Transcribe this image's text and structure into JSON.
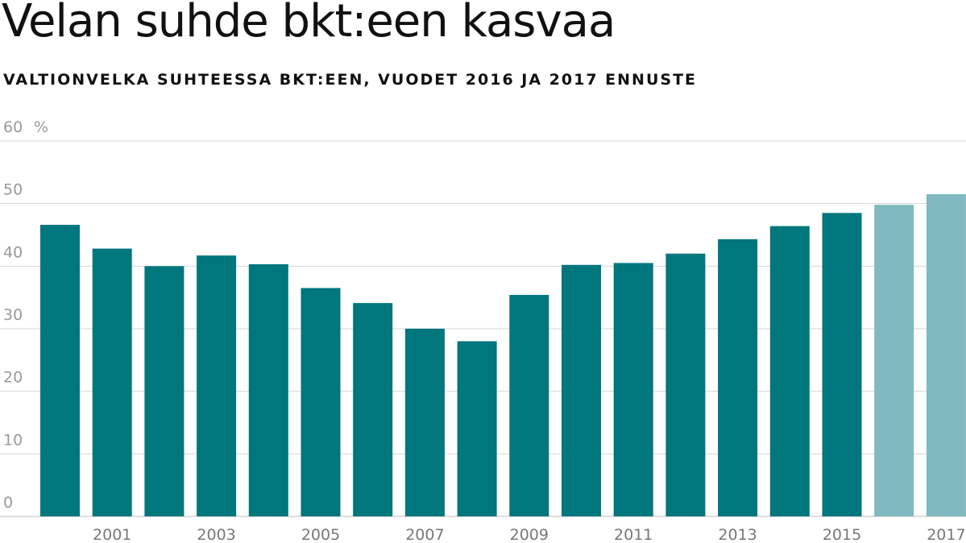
{
  "chart_data": {
    "type": "bar",
    "title": "Velan suhde bkt:een kasvaa",
    "subtitle": "VALTIONVELKA SUHTEESSA BKT:EEN, VUODET 2016 JA 2017 ENNUSTE",
    "y_unit": "%",
    "ylim": [
      0,
      60
    ],
    "y_ticks": [
      0,
      10,
      20,
      30,
      40,
      50,
      60
    ],
    "grid": true,
    "categories": [
      "2000",
      "2001",
      "2002",
      "2003",
      "2004",
      "2005",
      "2006",
      "2007",
      "2008",
      "2009",
      "2010",
      "2011",
      "2012",
      "2013",
      "2014",
      "2015",
      "2016",
      "2017"
    ],
    "x_tick_labels": [
      "",
      "2001",
      "",
      "2003",
      "",
      "2005",
      "",
      "2007",
      "",
      "2009",
      "",
      "2011",
      "",
      "2013",
      "",
      "2015",
      "",
      "2017"
    ],
    "values": [
      46.6,
      42.8,
      40.0,
      41.7,
      40.3,
      36.5,
      34.1,
      30.0,
      28.0,
      35.4,
      40.2,
      40.5,
      42.0,
      44.3,
      46.4,
      48.5,
      49.8,
      51.5
    ],
    "forecast": [
      false,
      false,
      false,
      false,
      false,
      false,
      false,
      false,
      false,
      false,
      false,
      false,
      false,
      false,
      false,
      false,
      true,
      true
    ],
    "colors": {
      "actual": "#00767d",
      "forecast": "#80b9c0",
      "grid": "#d4d4d4",
      "axis_text": "#999999"
    }
  }
}
